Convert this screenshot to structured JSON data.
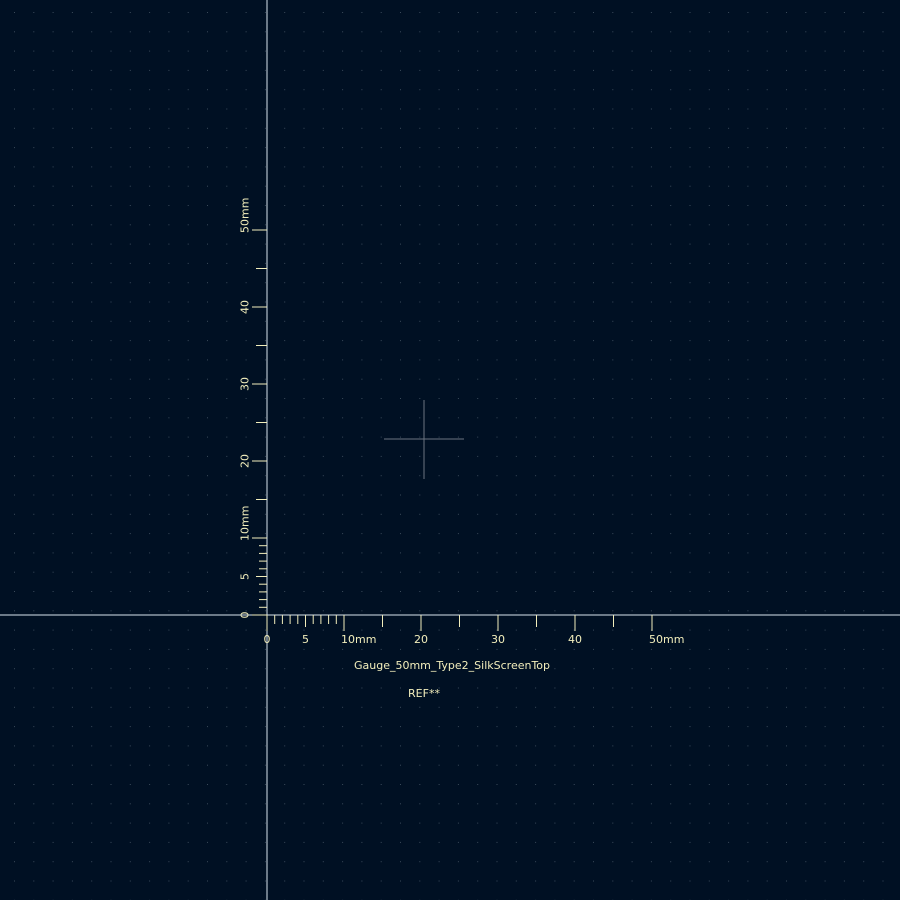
{
  "viewer": {
    "background_color": "#001023",
    "grid_dot_color": "#3a4a5a",
    "axis_color": "#d8e4ee",
    "silkscreen_color": "#f2eebc",
    "crosshair_color": "#6b7480"
  },
  "gauge": {
    "horizontal": {
      "unit": "mm",
      "fine_range_mm": [
        0,
        10
      ],
      "fine_step_mm": 1,
      "coarse_range_mm": [
        10,
        50
      ],
      "coarse_step_mm": 5,
      "labels": [
        {
          "value_mm": 0,
          "text": "0"
        },
        {
          "value_mm": 5,
          "text": "5"
        },
        {
          "value_mm": 10,
          "text": "10mm"
        },
        {
          "value_mm": 20,
          "text": "20"
        },
        {
          "value_mm": 30,
          "text": "30"
        },
        {
          "value_mm": 40,
          "text": "40"
        },
        {
          "value_mm": 50,
          "text": "50mm"
        }
      ]
    },
    "vertical": {
      "unit": "mm",
      "fine_range_mm": [
        0,
        10
      ],
      "fine_step_mm": 1,
      "coarse_range_mm": [
        10,
        50
      ],
      "coarse_step_mm": 5,
      "labels": [
        {
          "value_mm": 0,
          "text": "0"
        },
        {
          "value_mm": 5,
          "text": "5"
        },
        {
          "value_mm": 10,
          "text": "10mm"
        },
        {
          "value_mm": 20,
          "text": "20"
        },
        {
          "value_mm": 30,
          "text": "30"
        },
        {
          "value_mm": 40,
          "text": "40"
        },
        {
          "value_mm": 50,
          "text": "50mm"
        }
      ]
    }
  },
  "footprint": {
    "value_text": "Gauge_50mm_Type2_SilkScreenTop",
    "reference_text": "REF**"
  }
}
